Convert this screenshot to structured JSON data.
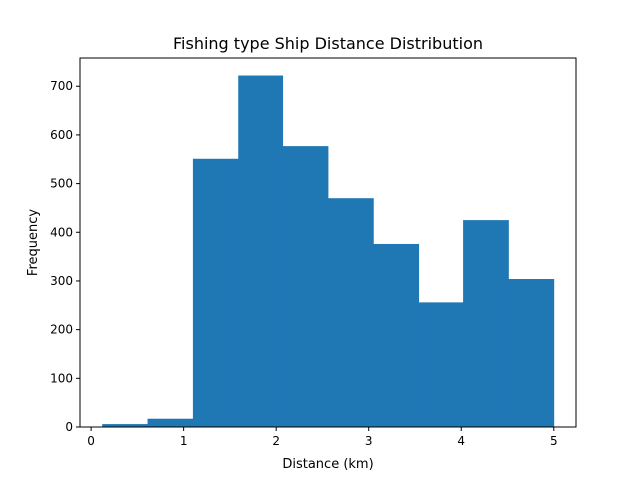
{
  "chart_data": {
    "type": "bar",
    "title": "Fishing type Ship Distance Distribution",
    "xlabel": "Distance (km)",
    "ylabel": "Frequency",
    "bins": [
      {
        "x0": 0.12,
        "x1": 0.61,
        "count": 6
      },
      {
        "x0": 0.61,
        "x1": 1.1,
        "count": 17
      },
      {
        "x0": 1.1,
        "x1": 1.59,
        "count": 551
      },
      {
        "x0": 1.59,
        "x1": 2.07,
        "count": 722
      },
      {
        "x0": 2.07,
        "x1": 2.56,
        "count": 577
      },
      {
        "x0": 2.56,
        "x1": 3.05,
        "count": 470
      },
      {
        "x0": 3.05,
        "x1": 3.54,
        "count": 376
      },
      {
        "x0": 3.54,
        "x1": 4.02,
        "count": 256
      },
      {
        "x0": 4.02,
        "x1": 4.51,
        "count": 425
      },
      {
        "x0": 4.51,
        "x1": 5.0,
        "count": 304
      }
    ],
    "xlim": [
      -0.12,
      5.24
    ],
    "ylim": [
      0,
      758
    ],
    "xticks": [
      0,
      1,
      2,
      3,
      4,
      5
    ],
    "yticks": [
      0,
      100,
      200,
      300,
      400,
      500,
      600,
      700
    ],
    "bar_color": "#1f77b4",
    "grid": false
  }
}
